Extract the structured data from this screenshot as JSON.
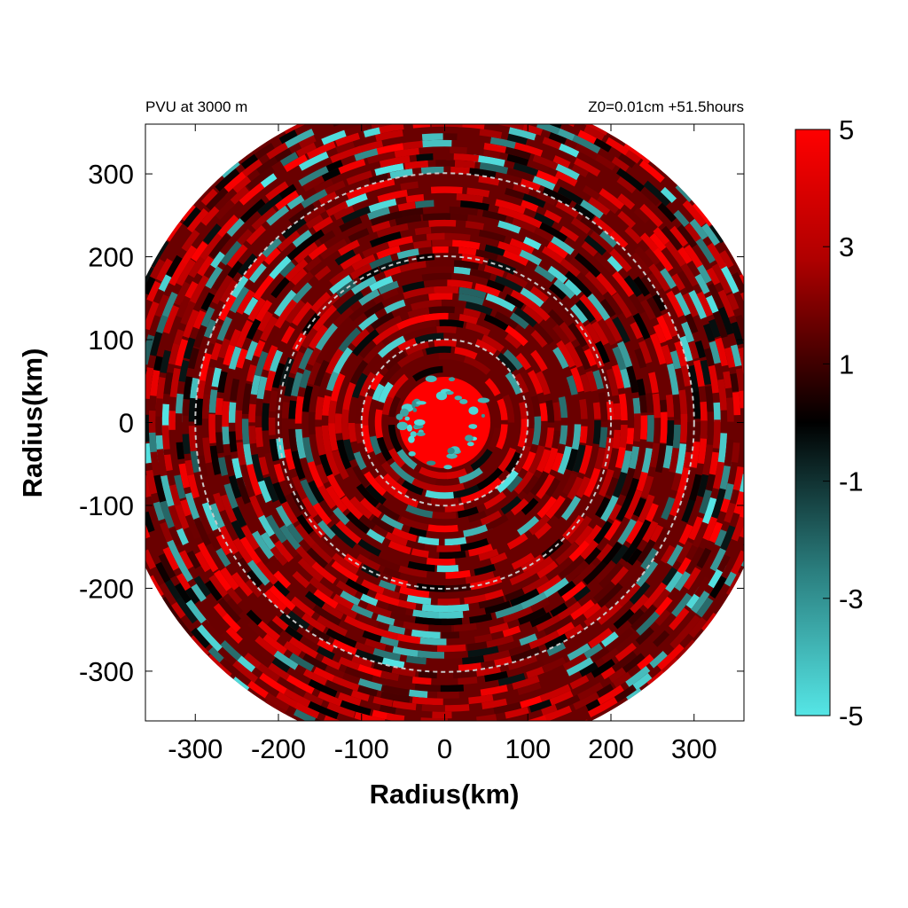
{
  "chart_data": {
    "type": "heatmap",
    "title_left": "PVU at  3000 m",
    "title_right": "Z0=0.01cm  +51.5hours",
    "xlabel": "Radius(km)",
    "ylabel": "Radius(km)",
    "xlim": [
      -360,
      360
    ],
    "ylim": [
      -360,
      360
    ],
    "xticks": [
      -300,
      -200,
      -100,
      0,
      100,
      200,
      300
    ],
    "yticks": [
      300,
      200,
      100,
      0,
      -100,
      -200,
      -300
    ],
    "xtick_labels": [
      "-300",
      "-200",
      "-100",
      "0",
      "100",
      "200",
      "300"
    ],
    "ytick_labels": [
      "300",
      "200",
      "100",
      "0",
      "-100",
      "-200",
      "-300"
    ],
    "domain_radius_km": 400,
    "reference_circles_km": [
      100,
      200,
      300
    ],
    "colorbar": {
      "range": [
        -5,
        5
      ],
      "ticks": [
        5,
        3,
        1,
        -1,
        -3,
        -5
      ],
      "tick_labels": [
        "5",
        "3",
        "1",
        "-1",
        "-3",
        "-5"
      ],
      "colors": {
        "max": "#ff0000",
        "mid": "#000000",
        "min": "#55e6e6"
      }
    },
    "features": {
      "core_radius_km": 55,
      "core_value": 5,
      "background_value": 2
    }
  }
}
